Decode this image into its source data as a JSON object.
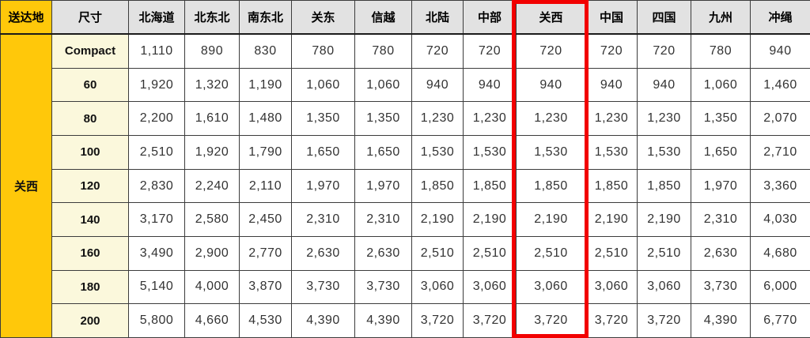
{
  "chart_data": {
    "type": "table",
    "corner_label": "送达地",
    "size_column_label": "尺寸",
    "origin_label": "关西",
    "highlighted_column": "关西",
    "columns": [
      "北海道",
      "北东北",
      "南东北",
      "关东",
      "信越",
      "北陆",
      "中部",
      "关西",
      "中国",
      "四国",
      "九州",
      "冲绳"
    ],
    "rows": [
      {
        "size": "Compact",
        "values": [
          "1,110",
          "890",
          "830",
          "780",
          "780",
          "720",
          "720",
          "720",
          "720",
          "720",
          "780",
          "940"
        ]
      },
      {
        "size": "60",
        "values": [
          "1,920",
          "1,320",
          "1,190",
          "1,060",
          "1,060",
          "940",
          "940",
          "940",
          "940",
          "940",
          "1,060",
          "1,460"
        ]
      },
      {
        "size": "80",
        "values": [
          "2,200",
          "1,610",
          "1,480",
          "1,350",
          "1,350",
          "1,230",
          "1,230",
          "1,230",
          "1,230",
          "1,230",
          "1,350",
          "2,070"
        ]
      },
      {
        "size": "100",
        "values": [
          "2,510",
          "1,920",
          "1,790",
          "1,650",
          "1,650",
          "1,530",
          "1,530",
          "1,530",
          "1,530",
          "1,530",
          "1,650",
          "2,710"
        ]
      },
      {
        "size": "120",
        "values": [
          "2,830",
          "2,240",
          "2,110",
          "1,970",
          "1,970",
          "1,850",
          "1,850",
          "1,850",
          "1,850",
          "1,850",
          "1,970",
          "3,360"
        ]
      },
      {
        "size": "140",
        "values": [
          "3,170",
          "2,580",
          "2,450",
          "2,310",
          "2,310",
          "2,190",
          "2,190",
          "2,190",
          "2,190",
          "2,190",
          "2,310",
          "4,030"
        ]
      },
      {
        "size": "160",
        "values": [
          "3,490",
          "2,900",
          "2,770",
          "2,630",
          "2,630",
          "2,510",
          "2,510",
          "2,510",
          "2,510",
          "2,510",
          "2,630",
          "4,680"
        ]
      },
      {
        "size": "180",
        "values": [
          "5,140",
          "4,000",
          "3,870",
          "3,730",
          "3,730",
          "3,060",
          "3,060",
          "3,060",
          "3,060",
          "3,060",
          "3,730",
          "6,000"
        ]
      },
      {
        "size": "200",
        "values": [
          "5,800",
          "4,660",
          "4,530",
          "4,390",
          "4,390",
          "3,720",
          "3,720",
          "3,720",
          "3,720",
          "3,720",
          "4,390",
          "6,770"
        ]
      }
    ]
  },
  "colors": {
    "destination_bg": "#ffc80a",
    "header_bg": "#e2e2e2",
    "size_bg": "#fbf8dc",
    "highlight_border": "#f20000",
    "grid": "#3c3c3c",
    "value_text": "#333333"
  }
}
